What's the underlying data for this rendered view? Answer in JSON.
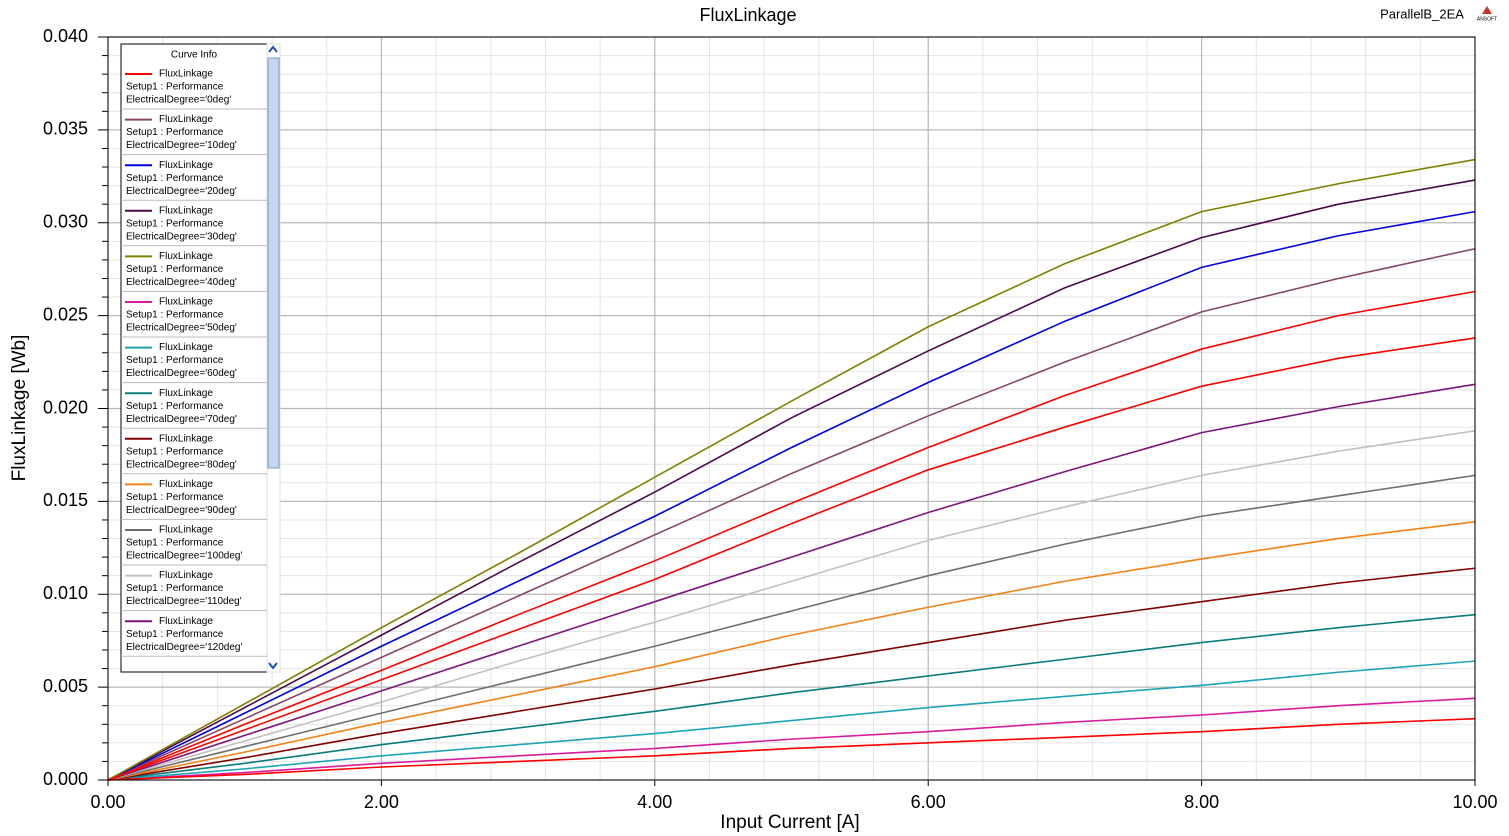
{
  "chart_data": {
    "type": "line",
    "title": "FluxLinkage",
    "design": "ParallelB_2EA",
    "logo": "ANSOFT",
    "x_label": "Input Current [A]",
    "y_label": "FluxLinkage [Wb]",
    "legend_title": "Curve Info",
    "legend": "upper left",
    "grid": true,
    "minor_grid": true,
    "xlim": [
      0,
      10
    ],
    "ylim": [
      0,
      0.04
    ],
    "xticks": [
      {
        "value": 0,
        "label": "0.00"
      },
      {
        "value": 2,
        "label": "2.00"
      },
      {
        "value": 4,
        "label": "4.00"
      },
      {
        "value": 6,
        "label": "6.00"
      },
      {
        "value": 8,
        "label": "8.00"
      },
      {
        "value": 10,
        "label": "10.00"
      }
    ],
    "yticks": [
      {
        "value": 0,
        "label": "0.000"
      },
      {
        "value": 0.005,
        "label": "0.005"
      },
      {
        "value": 0.01,
        "label": "0.010"
      },
      {
        "value": 0.015,
        "label": "0.015"
      },
      {
        "value": 0.02,
        "label": "0.020"
      },
      {
        "value": 0.025,
        "label": "0.025"
      },
      {
        "value": 0.03,
        "label": "0.030"
      },
      {
        "value": 0.035,
        "label": "0.035"
      },
      {
        "value": 0.04,
        "label": "0.040"
      }
    ],
    "x": [
      0,
      1,
      2,
      3,
      4,
      5,
      6,
      7,
      8,
      9,
      10
    ],
    "series": [
      {
        "name": "FluxLinkage",
        "setup": "Setup1 : Performance",
        "variation": "ElectricalDegree='0deg'",
        "color": "#ff0000",
        "values": [
          0,
          0.003,
          0.0059,
          0.0089,
          0.0118,
          0.0149,
          0.0179,
          0.0207,
          0.0232,
          0.025,
          0.0263
        ]
      },
      {
        "name": "FluxLinkage",
        "setup": "Setup1 : Performance",
        "variation": "ElectricalDegree='10deg'",
        "color": "#86476a",
        "values": [
          0,
          0.0033,
          0.0066,
          0.0099,
          0.0132,
          0.0165,
          0.0196,
          0.0225,
          0.0252,
          0.027,
          0.0286
        ]
      },
      {
        "name": "FluxLinkage",
        "setup": "Setup1 : Performance",
        "variation": "ElectricalDegree='20deg'",
        "color": "#0000e0",
        "values": [
          0,
          0.0036,
          0.0072,
          0.0107,
          0.0142,
          0.0179,
          0.0214,
          0.0247,
          0.0276,
          0.0293,
          0.0306
        ]
      },
      {
        "name": "FluxLinkage",
        "setup": "Setup1 : Performance",
        "variation": "ElectricalDegree='30deg'",
        "color": "#4b0a4b",
        "values": [
          0,
          0.0039,
          0.0078,
          0.0117,
          0.0155,
          0.0195,
          0.0231,
          0.0265,
          0.0292,
          0.031,
          0.0323
        ]
      },
      {
        "name": "FluxLinkage",
        "setup": "Setup1 : Performance",
        "variation": "ElectricalDegree='40deg'",
        "color": "#808000",
        "values": [
          0,
          0.0041,
          0.0082,
          0.0122,
          0.0163,
          0.0204,
          0.0244,
          0.0278,
          0.0306,
          0.0321,
          0.0334
        ]
      },
      {
        "name": "FluxLinkage",
        "setup": "Setup1 : Performance",
        "variation": "ElectricalDegree='50deg'",
        "color": "#d81c9c",
        "values": [
          0,
          0.0004,
          0.0009,
          0.0013,
          0.0017,
          0.0022,
          0.0026,
          0.0031,
          0.0035,
          0.004,
          0.0044
        ]
      },
      {
        "name": "FluxLinkage",
        "setup": "Setup1 : Performance",
        "variation": "ElectricalDegree='60deg'",
        "color": "#1fa4b4",
        "values": [
          0,
          0.0006,
          0.0013,
          0.0019,
          0.0025,
          0.0032,
          0.0039,
          0.0045,
          0.0051,
          0.0058,
          0.0064
        ]
      },
      {
        "name": "FluxLinkage",
        "setup": "Setup1 : Performance",
        "variation": "ElectricalDegree='70deg'",
        "color": "#0a7c7c",
        "values": [
          0,
          0.0009,
          0.0019,
          0.0028,
          0.0037,
          0.0047,
          0.0056,
          0.0065,
          0.0074,
          0.0082,
          0.0089
        ]
      },
      {
        "name": "FluxLinkage",
        "setup": "Setup1 : Performance",
        "variation": "ElectricalDegree='80deg'",
        "color": "#800000",
        "values": [
          0,
          0.0012,
          0.0025,
          0.0037,
          0.0049,
          0.0062,
          0.0074,
          0.0086,
          0.0096,
          0.0106,
          0.0114
        ]
      },
      {
        "name": "FluxLinkage",
        "setup": "Setup1 : Performance",
        "variation": "ElectricalDegree='90deg'",
        "color": "#f28316",
        "values": [
          0,
          0.0015,
          0.0031,
          0.0046,
          0.0061,
          0.0078,
          0.0093,
          0.0107,
          0.0119,
          0.013,
          0.0139
        ]
      },
      {
        "name": "FluxLinkage",
        "setup": "Setup1 : Performance",
        "variation": "ElectricalDegree='100deg'",
        "color": "#6e6e6e",
        "values": [
          0,
          0.0018,
          0.0036,
          0.0054,
          0.0072,
          0.0091,
          0.011,
          0.0127,
          0.0142,
          0.0153,
          0.0164
        ]
      },
      {
        "name": "FluxLinkage",
        "setup": "Setup1 : Performance",
        "variation": "ElectricalDegree='110deg'",
        "color": "#c0c0c0",
        "values": [
          0,
          0.0021,
          0.0042,
          0.0064,
          0.0085,
          0.0107,
          0.0129,
          0.0147,
          0.0164,
          0.0177,
          0.0188
        ]
      },
      {
        "name": "FluxLinkage",
        "setup": "Setup1 : Performance",
        "variation": "ElectricalDegree='120deg'",
        "color": "#7d157d",
        "values": [
          0,
          0.0024,
          0.0048,
          0.0072,
          0.0096,
          0.012,
          0.0144,
          0.0166,
          0.0187,
          0.0201,
          0.0213
        ]
      },
      {
        "color": "#ff0000",
        "values": [
          0,
          0.0027,
          0.0054,
          0.0081,
          0.0108,
          0.0138,
          0.0167,
          0.019,
          0.0212,
          0.0227,
          0.0238
        ]
      },
      {
        "color": "#ff0000",
        "values": [
          0,
          0.0003,
          0.0007,
          0.001,
          0.0013,
          0.0017,
          0.002,
          0.0023,
          0.0026,
          0.003,
          0.0033
        ]
      }
    ]
  }
}
